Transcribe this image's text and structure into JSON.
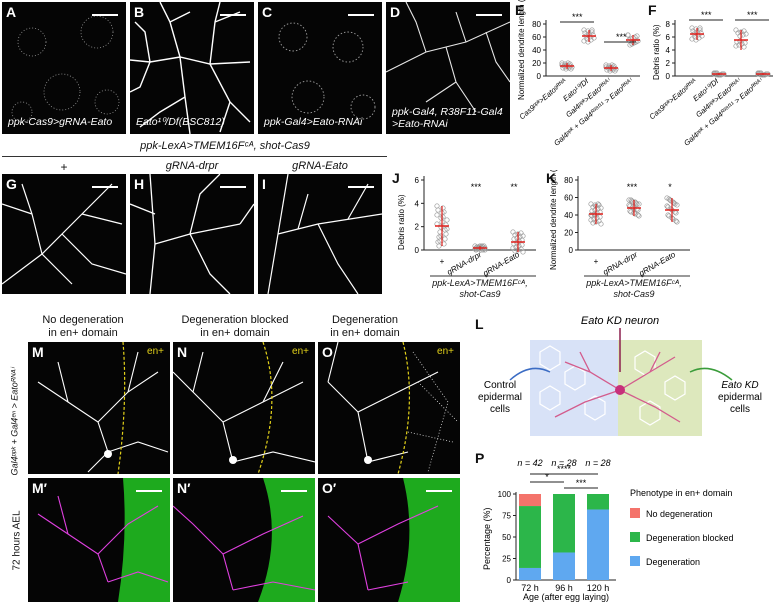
{
  "colors": {
    "dendrite": "#ffffff",
    "magenta": "#e040e0",
    "green": "#2ad82a",
    "red_err": "#e0201c",
    "yellow_dash": "#e3d21a",
    "bar_none": "#f4736b",
    "bar_blocked": "#2cb64a",
    "bar_degen": "#5fa8f0"
  },
  "top_row": {
    "A": {
      "label": "A",
      "caption": "ppk-Cas9>gRNA-Eato"
    },
    "B": {
      "label": "B",
      "caption": "Eato¹⁰/Df(BSC812)"
    },
    "C": {
      "label": "C",
      "caption": "ppk-Gal4>Eato-RNAi"
    },
    "D": {
      "label": "D",
      "caption": "ppk-Gal4, R38F11-Gal4\n>Eato-RNAi"
    }
  },
  "E": {
    "label": "E",
    "ylabel": "Normalized dendrite length (×10⁻³ µm⁻¹)",
    "yticks": [
      "0",
      "20",
      "40",
      "60",
      "80"
    ],
    "categories": [
      "Cas9ᵖᵖᵏ>Eatoᵍᴿᴺᴬ",
      "Eato¹⁰/Df",
      "Gal4ᵖᵖᵏ>Eatoᴿᴺᴬⁱ",
      "Gal4ᵖᵖᵏ + Gal4ᴿ³⁸ᶠ¹¹ > Eatoᴿᴺᴬⁱ"
    ],
    "sig": [
      "***",
      "***"
    ]
  },
  "F": {
    "label": "F",
    "ylabel": "Debris ratio (%)",
    "yticks": [
      "0",
      "2",
      "4",
      "6",
      "8"
    ],
    "categories": [
      "Cas9ᵖᵖᵏ>Eatoᵍᴿᴺᴬ",
      "Eato¹⁰/Df",
      "Gal4ᵖᵖᵏ>Eatoᴿᴺᴬⁱ",
      "Gal4ᵖᵖᵏ + Gal4ᴿ³⁸ᶠ¹¹ > Eatoᴿᴺᴬⁱ"
    ],
    "sig": [
      "***",
      "***"
    ]
  },
  "GHI": {
    "header": "ppk-LexA>TMEM16Fᶜᴬ, shot-Cas9",
    "G": {
      "label": "G",
      "title": "+"
    },
    "H": {
      "label": "H",
      "title": "gRNA-drpr"
    },
    "I": {
      "label": "I",
      "title": "gRNA-Eato"
    }
  },
  "J": {
    "label": "J",
    "ylabel": "Debris ratio (%)",
    "yticks": [
      "0",
      "2",
      "4",
      "6"
    ],
    "categories": [
      "+",
      "gRNA-drpr",
      "gRNA-Eato"
    ],
    "sig": [
      "",
      "***",
      "**"
    ],
    "footer": "ppk-LexA>TMEM16Fᶜᴬ,\nshot-Cas9"
  },
  "K": {
    "label": "K",
    "ylabel": "Normalized dendrite length (×10⁻³ µm⁻¹)",
    "yticks": [
      "0",
      "20",
      "40",
      "60",
      "80"
    ],
    "categories": [
      "+",
      "gRNA-drpr",
      "gRNA-Eato"
    ],
    "sig": [
      "",
      "***",
      "*"
    ],
    "footer": "ppk-LexA>TMEM16Fᶜᴬ,\nshot-Cas9"
  },
  "MNO": {
    "M": {
      "label": "M",
      "title": "No degeneration\nin en+ domain",
      "tag": "en+"
    },
    "N": {
      "label": "N",
      "title": "Degeneration blocked\nin en+ domain",
      "tag": "en+"
    },
    "O": {
      "label": "O",
      "title": "Degeneration\nin en+ domain",
      "tag": "en+"
    },
    "Mp": {
      "label": "M′"
    },
    "Np": {
      "label": "N′"
    },
    "Op": {
      "label": "O′"
    },
    "side_top": "Gal4ᵖᵖᵏ + Gal4ᵉⁿ > Eatoᴿᴺᴬⁱ",
    "side_bottom": "72 hours AEL"
  },
  "L": {
    "label": "L",
    "neuron": "Eato KD neuron",
    "control": "Control\nepidermal\ncells",
    "kd": "Eato KD\nepidermal\ncells"
  },
  "P": {
    "label": "P",
    "n": [
      "n = 42",
      "n = 28",
      "n = 28"
    ],
    "ylabel": "Percentage (%)",
    "yticks": [
      "0",
      "25",
      "50",
      "75",
      "100"
    ],
    "sig": [
      "*",
      "****",
      "***"
    ],
    "xlabel": "Age (after egg laying)",
    "legend_title": "Phenotype in en+ domain",
    "legend": [
      "No degeneration",
      "Degeneration blocked",
      "Degeneration"
    ]
  },
  "chart_data": [
    {
      "type": "bar",
      "title": "",
      "categories": [
        "72 h",
        "96 h",
        "120 h"
      ],
      "series": [
        {
          "name": "No degeneration",
          "values": [
            14,
            0,
            0
          ]
        },
        {
          "name": "Degeneration blocked",
          "values": [
            72,
            68,
            18
          ]
        },
        {
          "name": "Degeneration",
          "values": [
            14,
            32,
            82
          ]
        }
      ],
      "xlabel": "Age (after egg laying)",
      "ylabel": "Percentage (%)",
      "ylim": [
        0,
        100
      ]
    }
  ]
}
